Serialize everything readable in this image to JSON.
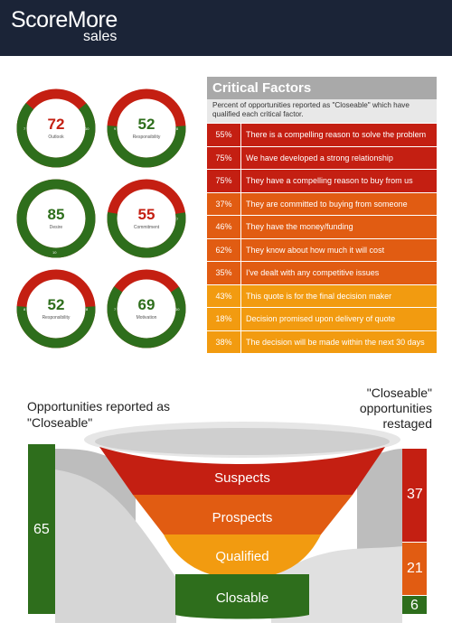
{
  "brand": {
    "name": "ScoreMore",
    "sub": "sales"
  },
  "colors": {
    "header": "#1b2437",
    "green": "#2e6e1c",
    "red": "#c41f12",
    "orange": "#e15c12",
    "amber": "#f29b10",
    "grey": "#a9a9a9"
  },
  "gauges": [
    {
      "value": "72",
      "label": "Outlook",
      "value_color": "#c41f12",
      "left": "7",
      "right": "10",
      "fraction": 0.72
    },
    {
      "value": "52",
      "label": "Responsibility",
      "value_color": "#2e6e1c",
      "left": "9",
      "right": "8",
      "fraction": 0.52
    },
    {
      "value": "85",
      "label": "Desire",
      "value_color": "#2e6e1c",
      "left": "",
      "right": "",
      "bottom": "10",
      "fraction": 1.0
    },
    {
      "value": "55",
      "label": "Commitment",
      "value_color": "#c41f12",
      "left": "",
      "right": "7",
      "fraction": 0.55
    },
    {
      "value": "52",
      "label": "Responsibility",
      "value_color": "#2e6e1c",
      "left": "8",
      "right": "8",
      "fraction": 0.52
    },
    {
      "value": "69",
      "label": "Motivation",
      "value_color": "#2e6e1c",
      "left": "7",
      "right": "10",
      "fraction": 0.69
    }
  ],
  "critical_factors": {
    "title": "Critical Factors",
    "description": "Percent of opportunities reported as \"Closeable\" which have qualified each critical factor.",
    "rows": [
      {
        "pct": "55%",
        "text": "There is a compelling reason to solve the problem",
        "color": "#c41f12"
      },
      {
        "pct": "75%",
        "text": "We have developed a strong relationship",
        "color": "#c41f12"
      },
      {
        "pct": "75%",
        "text": "They have a compelling reason to buy from us",
        "color": "#c41f12"
      },
      {
        "pct": "37%",
        "text": "They are committed to buying from someone",
        "color": "#e15c12"
      },
      {
        "pct": "46%",
        "text": "They have the money/funding",
        "color": "#e15c12"
      },
      {
        "pct": "62%",
        "text": "They know about how much it will cost",
        "color": "#e15c12"
      },
      {
        "pct": "35%",
        "text": "I've dealt with any competitive issues",
        "color": "#e15c12"
      },
      {
        "pct": "43%",
        "text": "This quote is for the final decision maker",
        "color": "#f29b10"
      },
      {
        "pct": "18%",
        "text": "Decision promised upon delivery of quote",
        "color": "#f29b10"
      },
      {
        "pct": "38%",
        "text": "The decision will be made within the next 30 days",
        "color": "#f29b10"
      }
    ]
  },
  "flow": {
    "left_label": "Opportunities reported as \"Closeable\"",
    "right_label": "\"Closeable\" opportunities restaged",
    "total": "65",
    "stages": [
      "Suspects",
      "Prospects",
      "Qualified",
      "Closable"
    ],
    "restaged": [
      {
        "value": "37",
        "color": "#c41f12"
      },
      {
        "value": "21",
        "color": "#e15c12"
      },
      {
        "value": "6",
        "color": "#2e6e1c"
      }
    ]
  }
}
